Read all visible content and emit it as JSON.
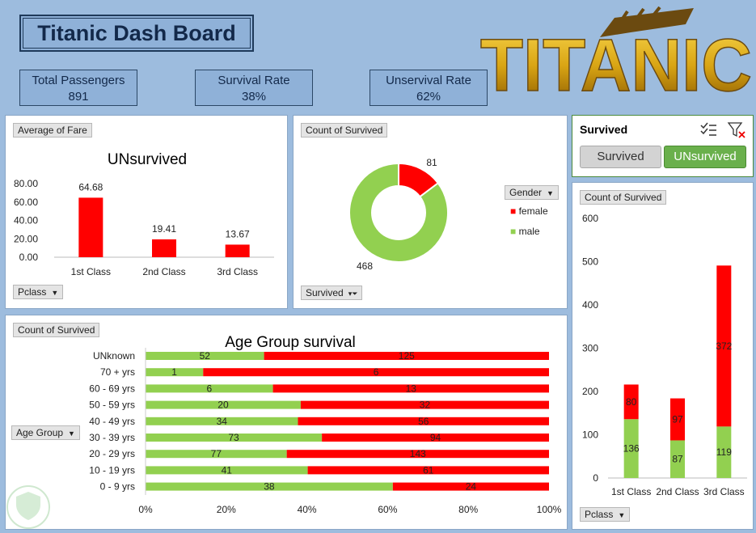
{
  "header": {
    "title": "Titanic Dash Board",
    "logo_text": "TITANIC"
  },
  "kpis": [
    {
      "label": "Total Passengers",
      "value": "891"
    },
    {
      "label": "Survival Rate",
      "value": "38%"
    },
    {
      "label": "Unservival Rate",
      "value": "62%"
    }
  ],
  "fare_panel": {
    "field_button": "Average of Fare",
    "filter_button": "Pclass"
  },
  "donut_panel": {
    "field_button": "Count of Survived",
    "filter_button": "Survived",
    "legend_button": "Gender"
  },
  "slicer": {
    "title": "Survived",
    "items": [
      {
        "label": "Survived",
        "selected": false
      },
      {
        "label": "UNsurvived",
        "selected": true
      }
    ]
  },
  "age_panel": {
    "field_button": "Count of Survived",
    "axis_button": "Age Group"
  },
  "class_panel": {
    "field_button": "Count of Survived",
    "filter_button": "Pclass"
  },
  "colors": {
    "survived": "#92d050",
    "unsurvived": "#ff0000",
    "background": "#9dbcde"
  },
  "chart_data": [
    {
      "type": "bar",
      "title": "UNsurvived",
      "categories": [
        "1st Class",
        "2nd Class",
        "3rd Class"
      ],
      "values": [
        64.68,
        19.41,
        13.67
      ],
      "value_labels": [
        "64.68",
        "19.41",
        "13.67"
      ],
      "y_ticks": [
        "80.00",
        "60.00",
        "40.00",
        "20.00",
        "0.00"
      ],
      "ylim": [
        0,
        80
      ]
    },
    {
      "type": "pie",
      "donut": true,
      "slices": [
        {
          "name": "female",
          "value": 81,
          "label": "81",
          "color": "#ff0000"
        },
        {
          "name": "male",
          "value": 468,
          "label": "468",
          "color": "#92d050"
        }
      ],
      "legend": "right"
    },
    {
      "type": "bar",
      "orientation": "horizontal",
      "stacked": "percent",
      "title": "Age Group survival",
      "categories": [
        "UNknown",
        "70 + yrs",
        "60 - 69 yrs",
        "50 - 59 yrs",
        "40 - 49 yrs",
        "30 - 39 yrs",
        "20 - 29 yrs",
        "10 - 19 yrs",
        "0 - 9 yrs"
      ],
      "series": [
        {
          "color": "#92d050",
          "values": [
            52,
            1,
            6,
            20,
            34,
            73,
            77,
            41,
            38
          ]
        },
        {
          "color": "#ff0000",
          "values": [
            125,
            6,
            13,
            32,
            56,
            94,
            143,
            61,
            24
          ]
        }
      ],
      "x_ticks": [
        "0%",
        "20%",
        "40%",
        "60%",
        "80%",
        "100%"
      ]
    },
    {
      "type": "bar",
      "stacked": true,
      "categories": [
        "1st Class",
        "2nd Class",
        "3rd Class"
      ],
      "series": [
        {
          "color": "#92d050",
          "values": [
            136,
            87,
            119
          ]
        },
        {
          "color": "#ff0000",
          "values": [
            80,
            97,
            372
          ]
        }
      ],
      "y_ticks": [
        "600",
        "500",
        "400",
        "300",
        "200",
        "100",
        "0"
      ],
      "ylim": [
        0,
        600
      ]
    }
  ]
}
